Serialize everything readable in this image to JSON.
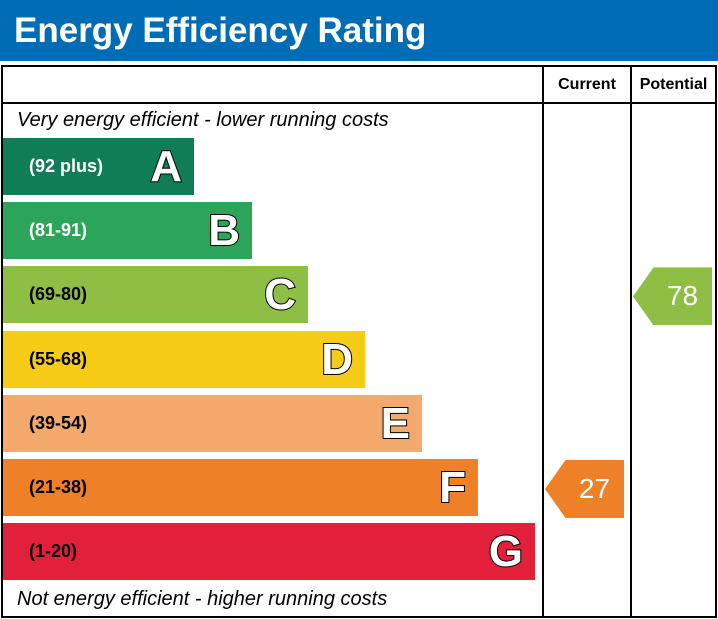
{
  "title": "Energy Efficiency Rating",
  "chart_data": {
    "type": "bar",
    "columns": [
      "Current",
      "Potential"
    ],
    "top_caption": "Very energy efficient - lower running costs",
    "bottom_caption": "Not energy efficient - higher running costs",
    "bands": [
      {
        "letter": "A",
        "range": "(92 plus)",
        "color": "#117d57",
        "text_color": "#ffffff"
      },
      {
        "letter": "B",
        "range": "(81-91)",
        "color": "#2ca55a",
        "text_color": "#ffffff"
      },
      {
        "letter": "C",
        "range": "(69-80)",
        "color": "#8fbe44",
        "text_color": "#000000"
      },
      {
        "letter": "D",
        "range": "(55-68)",
        "color": "#f6cc16",
        "text_color": "#000000"
      },
      {
        "letter": "E",
        "range": "(39-54)",
        "color": "#f3a96b",
        "text_color": "#000000"
      },
      {
        "letter": "F",
        "range": "(21-38)",
        "color": "#ee8127",
        "text_color": "#000000"
      },
      {
        "letter": "G",
        "range": "(1-20)",
        "color": "#e3203b",
        "text_color": "#000000"
      }
    ],
    "current": {
      "value": "27",
      "band": "F",
      "color": "#ee8127"
    },
    "potential": {
      "value": "78",
      "band": "C",
      "color": "#8fbe44"
    }
  }
}
